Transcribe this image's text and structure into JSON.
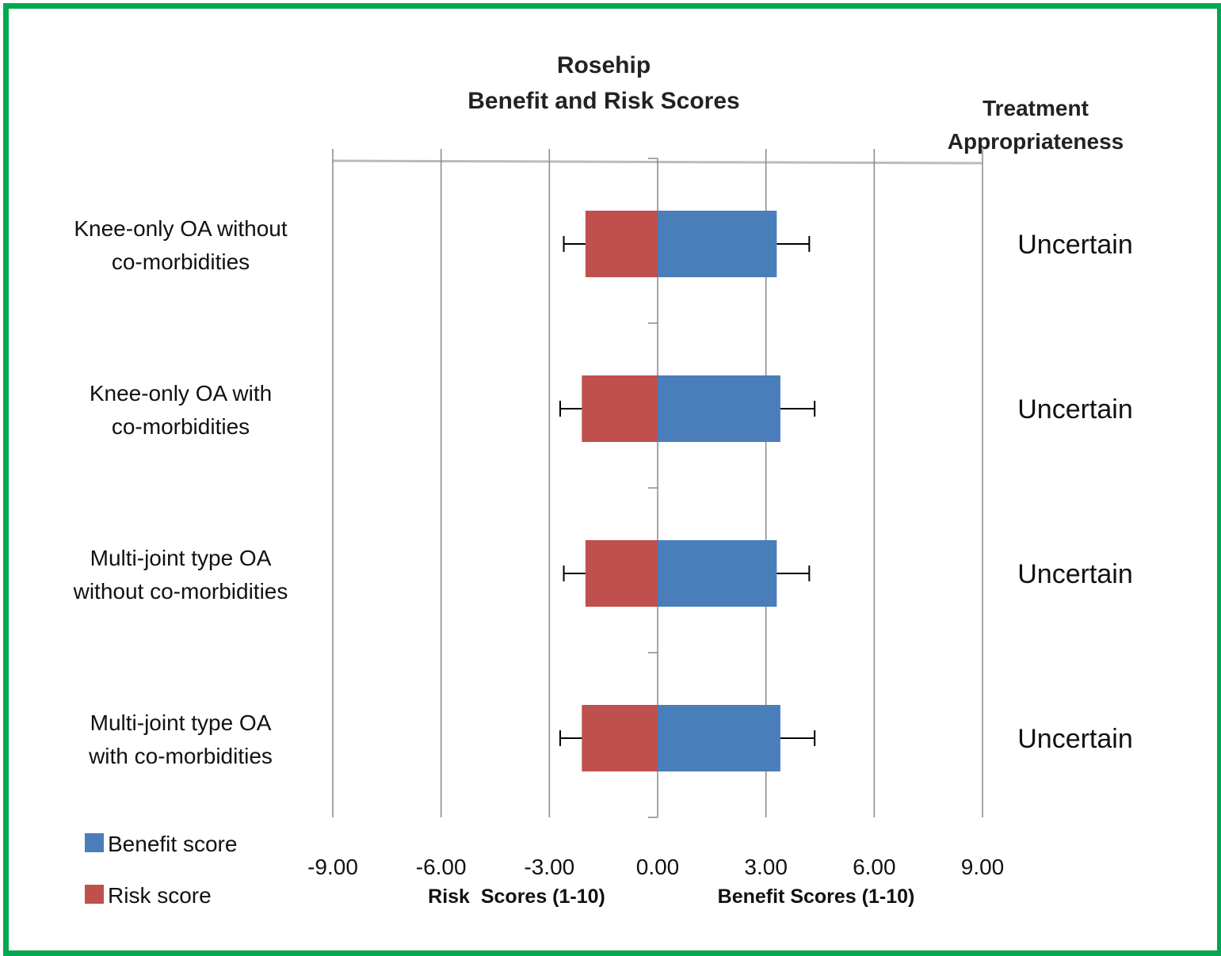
{
  "colors": {
    "border": "#00a84f",
    "benefit": "#4a7ebb",
    "risk": "#c0504d",
    "grid": "#888888",
    "axis": "#bbbbbb"
  },
  "chart_data": {
    "type": "bar",
    "orientation": "horizontal",
    "title_lines": [
      "Rosehip",
      "Benefit and Risk Scores"
    ],
    "appropriateness_header": [
      "Treatment",
      "Appropriateness"
    ],
    "xlabel_left": "Risk  Scores (1-10)",
    "xlabel_right": "Benefit Scores (1-10)",
    "xlim": [
      -9,
      9
    ],
    "xticks": [
      -9,
      -6,
      -3,
      0,
      3,
      6,
      9
    ],
    "xtick_labels": [
      "-9.00",
      "-6.00",
      "-3.00",
      "0.00",
      "3.00",
      "6.00",
      "9.00"
    ],
    "grid": true,
    "legend_position": "bottom-left",
    "categories": [
      [
        "Knee-only OA without",
        "co-morbidities"
      ],
      [
        "Knee-only OA with",
        "co-morbidities"
      ],
      [
        "Multi-joint type OA",
        "without co-morbidities"
      ],
      [
        "Multi-joint type OA",
        "with co-morbidities"
      ]
    ],
    "series": [
      {
        "name": "Benefit score",
        "values": [
          3.3,
          3.4,
          3.3,
          3.4
        ],
        "error": [
          0.9,
          0.95,
          0.9,
          0.95
        ]
      },
      {
        "name": "Risk score",
        "values": [
          -2.0,
          -2.1,
          -2.0,
          -2.1
        ],
        "error": [
          0.6,
          0.6,
          0.6,
          0.6
        ]
      }
    ],
    "appropriateness": [
      "Uncertain",
      "Uncertain",
      "Uncertain",
      "Uncertain"
    ]
  }
}
